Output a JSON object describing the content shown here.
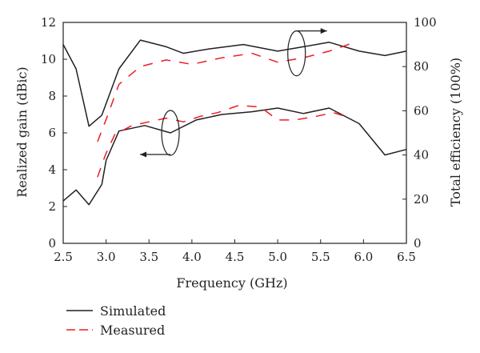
{
  "chart_data": {
    "type": "line",
    "title": "",
    "xlabel": "Frequency (GHz)",
    "ylabel_left": "Realized gain (dBic)",
    "ylabel_right": "Total efficiency (100%)",
    "xlim": [
      2.5,
      6.5
    ],
    "ylim_left": [
      0,
      12
    ],
    "ylim_right": [
      0,
      100
    ],
    "x_ticks": [
      "2.5",
      "3.0",
      "3.5",
      "4.0",
      "4.5",
      "5.0",
      "5.5",
      "6.0",
      "6.5"
    ],
    "y_left_ticks": [
      "0",
      "2",
      "4",
      "6",
      "8",
      "10",
      "12"
    ],
    "y_right_ticks": [
      "0",
      "20",
      "40",
      "60",
      "80",
      "100"
    ],
    "grid": false,
    "legend_position": "bottom-left",
    "legend": [
      "Simulated",
      "Measured"
    ],
    "colors": {
      "simulated": "#231f20",
      "measured": "#ed1c24"
    },
    "series": [
      {
        "name": "Simulated",
        "axis": "left",
        "style": "solid",
        "x": [
          2.5,
          2.65,
          2.8,
          2.95,
          3.0,
          3.15,
          3.45,
          3.75,
          4.05,
          4.35,
          4.7,
          5.0,
          5.3,
          5.6,
          5.95,
          6.25,
          6.5
        ],
        "values": [
          2.3,
          2.9,
          2.1,
          3.2,
          4.5,
          6.1,
          6.4,
          6.0,
          6.7,
          7.0,
          7.15,
          7.35,
          7.05,
          7.35,
          6.5,
          4.8,
          5.1
        ]
      },
      {
        "name": "Simulated",
        "axis": "right",
        "style": "solid",
        "x": [
          2.5,
          2.65,
          2.8,
          2.95,
          3.15,
          3.4,
          3.7,
          3.9,
          4.2,
          4.6,
          5.0,
          5.3,
          5.6,
          5.95,
          6.25,
          6.5
        ],
        "values": [
          90,
          79,
          53,
          58,
          79,
          92,
          89,
          86,
          88,
          90,
          87,
          89,
          91,
          87,
          85,
          87
        ]
      },
      {
        "name": "Measured",
        "axis": "left",
        "style": "dashed",
        "x": [
          2.9,
          3.0,
          3.1,
          3.3,
          3.5,
          3.7,
          3.9,
          4.1,
          4.3,
          4.55,
          4.8,
          5.0,
          5.2,
          5.45,
          5.65,
          5.85
        ],
        "values": [
          3.6,
          4.9,
          5.9,
          6.4,
          6.6,
          6.8,
          6.6,
          6.9,
          7.1,
          7.5,
          7.4,
          6.7,
          6.7,
          6.9,
          7.1,
          6.8
        ]
      },
      {
        "name": "Measured",
        "axis": "right",
        "style": "dashed",
        "x": [
          2.9,
          3.0,
          3.15,
          3.4,
          3.7,
          4.0,
          4.35,
          4.7,
          5.0,
          5.3,
          5.6,
          5.9
        ],
        "values": [
          46,
          56,
          72,
          80,
          83,
          81,
          84,
          86,
          82,
          84,
          87,
          91
        ]
      }
    ],
    "annotations": [
      {
        "label": "ellipse-left",
        "x": 3.75,
        "y_left": 6.0,
        "arrow": "left"
      },
      {
        "label": "ellipse-right",
        "x": 5.22,
        "y_right": 86,
        "arrow": "right"
      }
    ]
  }
}
